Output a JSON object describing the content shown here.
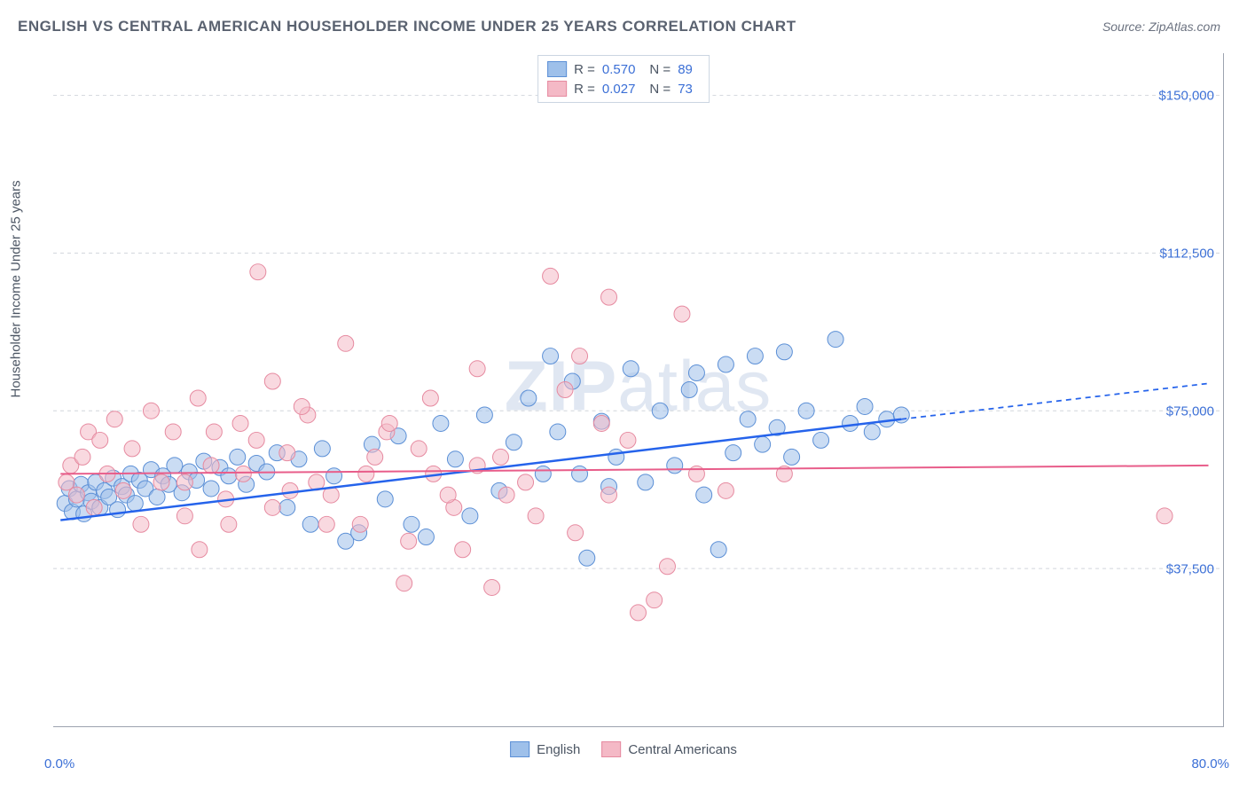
{
  "title": "ENGLISH VS CENTRAL AMERICAN HOUSEHOLDER INCOME UNDER 25 YEARS CORRELATION CHART",
  "source_label": "Source: ZipAtlas.com",
  "watermark": {
    "bold": "ZIP",
    "light": "atlas"
  },
  "y_axis_label": "Householder Income Under 25 years",
  "chart": {
    "type": "scatter",
    "xlim": [
      0,
      80
    ],
    "ylim": [
      0,
      160000
    ],
    "x_tick_positions": [
      0,
      10,
      20,
      30,
      40,
      50,
      60,
      70,
      80
    ],
    "x_label_min": "0.0%",
    "x_label_max": "80.0%",
    "y_ticks": [
      {
        "value": 37500,
        "label": "$37,500"
      },
      {
        "value": 75000,
        "label": "$75,000"
      },
      {
        "value": 112500,
        "label": "$112,500"
      },
      {
        "value": 150000,
        "label": "$150,000"
      }
    ],
    "background_color": "#ffffff",
    "grid_color": "#d1d5db",
    "marker_radius": 9,
    "marker_opacity": 0.55,
    "series": [
      {
        "name": "English",
        "label": "English",
        "fill_color": "#9ec0ea",
        "stroke_color": "#5b8fd6",
        "r_value": "0.570",
        "n_value": "89",
        "trend": {
          "x1": 0.5,
          "y1": 49000,
          "x2": 58,
          "y2": 73000,
          "x2_ext": 79,
          "y2_ext": 81500,
          "solid_color": "#2563eb",
          "dash_color": "#2563eb",
          "width": 2.5
        },
        "points": [
          [
            0.8,
            53000
          ],
          [
            1.1,
            56500
          ],
          [
            1.3,
            51000
          ],
          [
            1.6,
            54000
          ],
          [
            1.9,
            57500
          ],
          [
            2.1,
            50500
          ],
          [
            2.4,
            55500
          ],
          [
            2.6,
            53500
          ],
          [
            2.9,
            58000
          ],
          [
            3.2,
            52000
          ],
          [
            3.5,
            56000
          ],
          [
            3.8,
            54500
          ],
          [
            4.1,
            59000
          ],
          [
            4.4,
            51500
          ],
          [
            4.7,
            57000
          ],
          [
            5.0,
            55000
          ],
          [
            5.3,
            60000
          ],
          [
            5.6,
            53000
          ],
          [
            5.9,
            58500
          ],
          [
            6.3,
            56500
          ],
          [
            6.7,
            61000
          ],
          [
            7.1,
            54500
          ],
          [
            7.5,
            59500
          ],
          [
            7.9,
            57500
          ],
          [
            8.3,
            62000
          ],
          [
            8.8,
            55500
          ],
          [
            9.3,
            60500
          ],
          [
            9.8,
            58500
          ],
          [
            10.3,
            63000
          ],
          [
            10.8,
            56500
          ],
          [
            11.4,
            61500
          ],
          [
            12.0,
            59500
          ],
          [
            12.6,
            64000
          ],
          [
            13.2,
            57500
          ],
          [
            13.9,
            62500
          ],
          [
            14.6,
            60500
          ],
          [
            15.3,
            65000
          ],
          [
            16.0,
            52000
          ],
          [
            16.8,
            63500
          ],
          [
            17.6,
            48000
          ],
          [
            18.4,
            66000
          ],
          [
            19.2,
            59500
          ],
          [
            20.0,
            44000
          ],
          [
            20.9,
            46000
          ],
          [
            21.8,
            67000
          ],
          [
            22.7,
            54000
          ],
          [
            23.6,
            69000
          ],
          [
            24.5,
            48000
          ],
          [
            25.5,
            45000
          ],
          [
            26.5,
            72000
          ],
          [
            27.5,
            63500
          ],
          [
            28.5,
            50000
          ],
          [
            29.5,
            74000
          ],
          [
            30.5,
            56000
          ],
          [
            31.5,
            67500
          ],
          [
            32.5,
            78000
          ],
          [
            33.5,
            60000
          ],
          [
            34.5,
            70000
          ],
          [
            35.5,
            82000
          ],
          [
            36.5,
            40000
          ],
          [
            37.5,
            72500
          ],
          [
            38.5,
            64000
          ],
          [
            39.5,
            85000
          ],
          [
            40.5,
            58000
          ],
          [
            41.5,
            75000
          ],
          [
            42.5,
            62000
          ],
          [
            43.5,
            80000
          ],
          [
            44.5,
            55000
          ],
          [
            45.5,
            42000
          ],
          [
            46.5,
            65000
          ],
          [
            47.5,
            73000
          ],
          [
            48.5,
            67000
          ],
          [
            49.5,
            71000
          ],
          [
            50.5,
            64000
          ],
          [
            51.5,
            75000
          ],
          [
            52.5,
            68000
          ],
          [
            53.5,
            92000
          ],
          [
            54.5,
            72000
          ],
          [
            55.5,
            76000
          ],
          [
            56.0,
            70000
          ],
          [
            57.0,
            73000
          ],
          [
            58.0,
            74000
          ],
          [
            46.0,
            86000
          ],
          [
            50.0,
            89000
          ],
          [
            48.0,
            88000
          ],
          [
            44.0,
            84000
          ],
          [
            36.0,
            60000
          ],
          [
            38.0,
            57000
          ],
          [
            34.0,
            88000
          ]
        ]
      },
      {
        "name": "Central Americans",
        "label": "Central Americans",
        "fill_color": "#f4b9c6",
        "stroke_color": "#e68aa0",
        "r_value": "0.027",
        "n_value": "73",
        "trend": {
          "x1": 0.5,
          "y1": 60000,
          "x2": 79,
          "y2": 62000,
          "solid_color": "#e85d8a",
          "width": 2
        },
        "points": [
          [
            0.9,
            58000
          ],
          [
            1.2,
            62000
          ],
          [
            1.6,
            55000
          ],
          [
            2.0,
            64000
          ],
          [
            2.4,
            70000
          ],
          [
            2.8,
            52000
          ],
          [
            3.2,
            68000
          ],
          [
            3.7,
            60000
          ],
          [
            4.2,
            73000
          ],
          [
            4.8,
            56000
          ],
          [
            5.4,
            66000
          ],
          [
            6.0,
            48000
          ],
          [
            6.7,
            75000
          ],
          [
            7.4,
            58000
          ],
          [
            8.2,
            70000
          ],
          [
            9.0,
            50000
          ],
          [
            9.9,
            78000
          ],
          [
            10.8,
            62000
          ],
          [
            11.8,
            54000
          ],
          [
            12.8,
            72000
          ],
          [
            13.9,
            68000
          ],
          [
            15.0,
            82000
          ],
          [
            16.2,
            56000
          ],
          [
            17.4,
            74000
          ],
          [
            18.7,
            48000
          ],
          [
            20.0,
            91000
          ],
          [
            21.4,
            60000
          ],
          [
            22.8,
            70000
          ],
          [
            24.3,
            44000
          ],
          [
            25.8,
            78000
          ],
          [
            27.4,
            52000
          ],
          [
            29.0,
            85000
          ],
          [
            30.6,
            64000
          ],
          [
            32.3,
            58000
          ],
          [
            34.0,
            107000
          ],
          [
            35.7,
            46000
          ],
          [
            37.5,
            72000
          ],
          [
            39.3,
            68000
          ],
          [
            41.1,
            30000
          ],
          [
            43.0,
            98000
          ],
          [
            35.0,
            80000
          ],
          [
            28.0,
            42000
          ],
          [
            30.0,
            33000
          ],
          [
            38.0,
            102000
          ],
          [
            36.0,
            88000
          ],
          [
            26.0,
            60000
          ],
          [
            22.0,
            64000
          ],
          [
            18.0,
            58000
          ],
          [
            14.0,
            108000
          ],
          [
            16.0,
            65000
          ],
          [
            19.0,
            55000
          ],
          [
            21.0,
            48000
          ],
          [
            23.0,
            72000
          ],
          [
            25.0,
            66000
          ],
          [
            31.0,
            55000
          ],
          [
            33.0,
            50000
          ],
          [
            12.0,
            48000
          ],
          [
            10.0,
            42000
          ],
          [
            11.0,
            70000
          ],
          [
            13.0,
            60000
          ],
          [
            15.0,
            52000
          ],
          [
            17.0,
            76000
          ],
          [
            24.0,
            34000
          ],
          [
            27.0,
            55000
          ],
          [
            29.0,
            62000
          ],
          [
            40.0,
            27000
          ],
          [
            42.0,
            38000
          ],
          [
            38.0,
            55000
          ],
          [
            44.0,
            60000
          ],
          [
            46.0,
            56000
          ],
          [
            50.0,
            60000
          ],
          [
            76.0,
            50000
          ],
          [
            9.0,
            58000
          ]
        ]
      }
    ]
  }
}
